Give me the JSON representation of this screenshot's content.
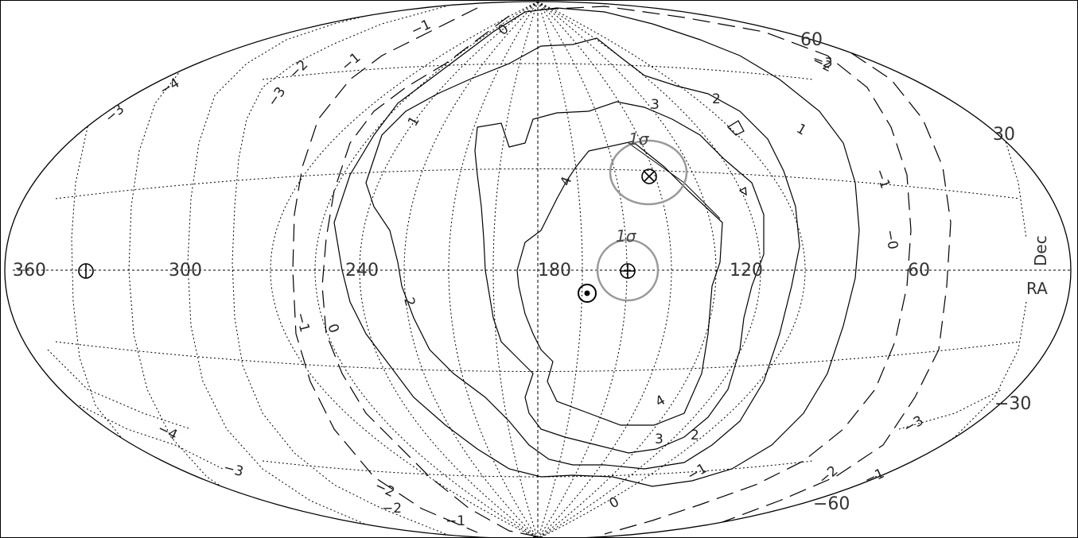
{
  "ra_labels": [
    "360",
    "300",
    "240",
    "180",
    "120",
    "60"
  ],
  "dec_labels": [
    "60",
    "30",
    "−30",
    "−60"
  ],
  "axis_labels": {
    "ra": "RA",
    "dec": "Dec"
  },
  "sigma_labels": [
    "1σ",
    "1σ"
  ],
  "contour_labels": {
    "solid": [
      "4",
      "4",
      "3",
      "3",
      "2",
      "2",
      "2",
      "1",
      "1"
    ],
    "dashed": [
      "0",
      "−1",
      "0",
      "−1",
      "−0",
      "−1",
      "0",
      "−1",
      "−2"
    ],
    "dotted": [
      "−1",
      "−2",
      "−3",
      "−4",
      "−3",
      "−4",
      "−3",
      "−2",
      "−2",
      "−3",
      "−2",
      "−1",
      "−1",
      "−2"
    ]
  },
  "markers": [
    {
      "name": "sun-apex-symbol",
      "symbol": "⊙"
    },
    {
      "name": "earth-symbol",
      "symbol": "⊕"
    },
    {
      "name": "crossed-circle-symbol",
      "symbol": "⊗"
    },
    {
      "name": "antipode-symbol",
      "symbol": "⊖"
    }
  ],
  "colors": {
    "line": "#000000",
    "grid": "#000000",
    "ellipse": "#999999"
  }
}
